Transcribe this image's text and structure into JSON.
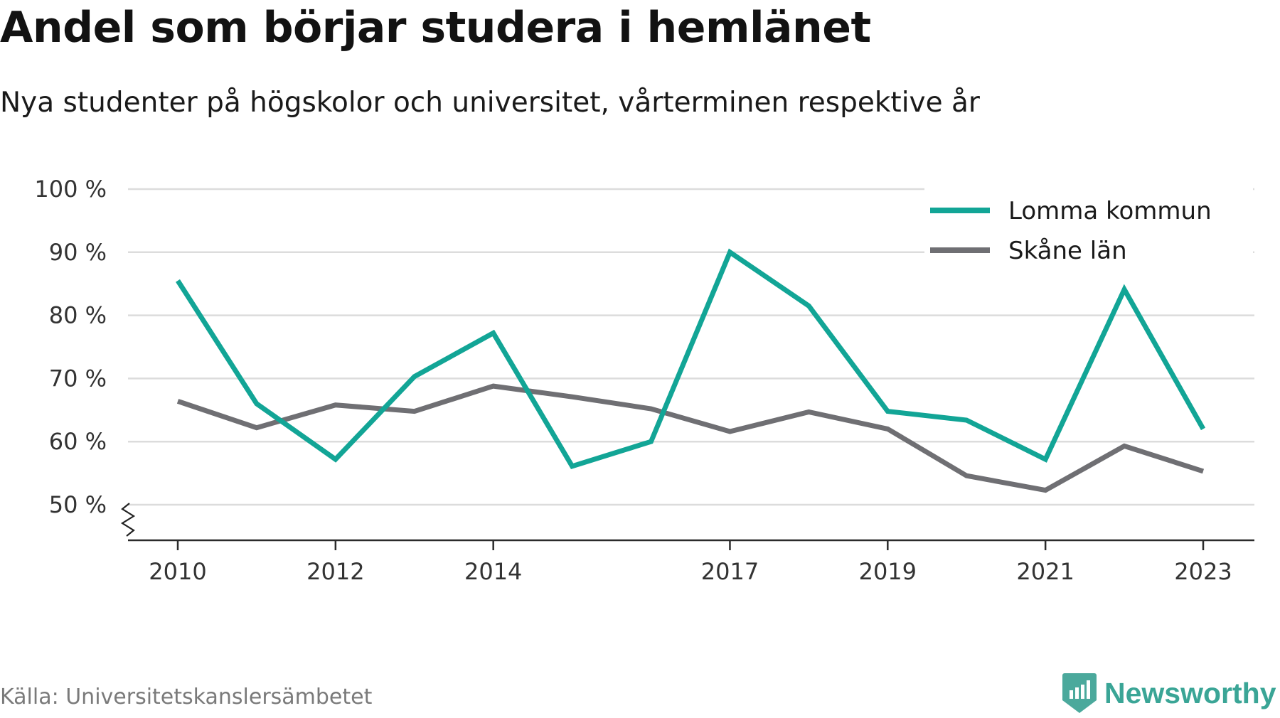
{
  "header": {
    "title": "Andel som börjar studera i hemlänet",
    "subtitle": "Nya studenter på högskolor och universitet, vårterminen respektive år"
  },
  "footer": {
    "source": "Källa: Universitetskanslersämbetet",
    "brand": "Newsworthy",
    "brand_icon": "newsworthy-logo-icon",
    "brand_color": "#3aa596"
  },
  "chart_data": {
    "type": "line",
    "title": "Andel som börjar studera i hemlänet",
    "subtitle": "Nya studenter på högskolor och universitet, vårterminen respektive år",
    "xlabel": "",
    "ylabel": "",
    "x": [
      2010,
      2011,
      2012,
      2013,
      2014,
      2015,
      2016,
      2017,
      2018,
      2019,
      2020,
      2021,
      2022,
      2023
    ],
    "x_tick_labels": [
      "2010",
      "2012",
      "2014",
      "2017",
      "2019",
      "2021",
      "2023"
    ],
    "y_tick_labels": [
      "100 %",
      "90 %",
      "80 %",
      "70 %",
      "60 %",
      "50 %"
    ],
    "y_ticks": [
      100,
      90,
      80,
      70,
      60,
      50
    ],
    "ylim": [
      50,
      100
    ],
    "y_axis_break": true,
    "grid": true,
    "legend_position": "top-right",
    "series": [
      {
        "name": "Lomma kommun",
        "color": "#12a596",
        "values": [
          85.5,
          66,
          57.2,
          70.3,
          77.2,
          56.1,
          60,
          90,
          81.5,
          64.8,
          63.4,
          57.2,
          84.1,
          62
        ]
      },
      {
        "name": "Skåne län",
        "color": "#6f6f73",
        "values": [
          66.4,
          62.2,
          65.8,
          64.8,
          68.8,
          67.1,
          65.2,
          61.6,
          64.7,
          62,
          54.6,
          52.3,
          59.3,
          55.3
        ]
      }
    ]
  }
}
